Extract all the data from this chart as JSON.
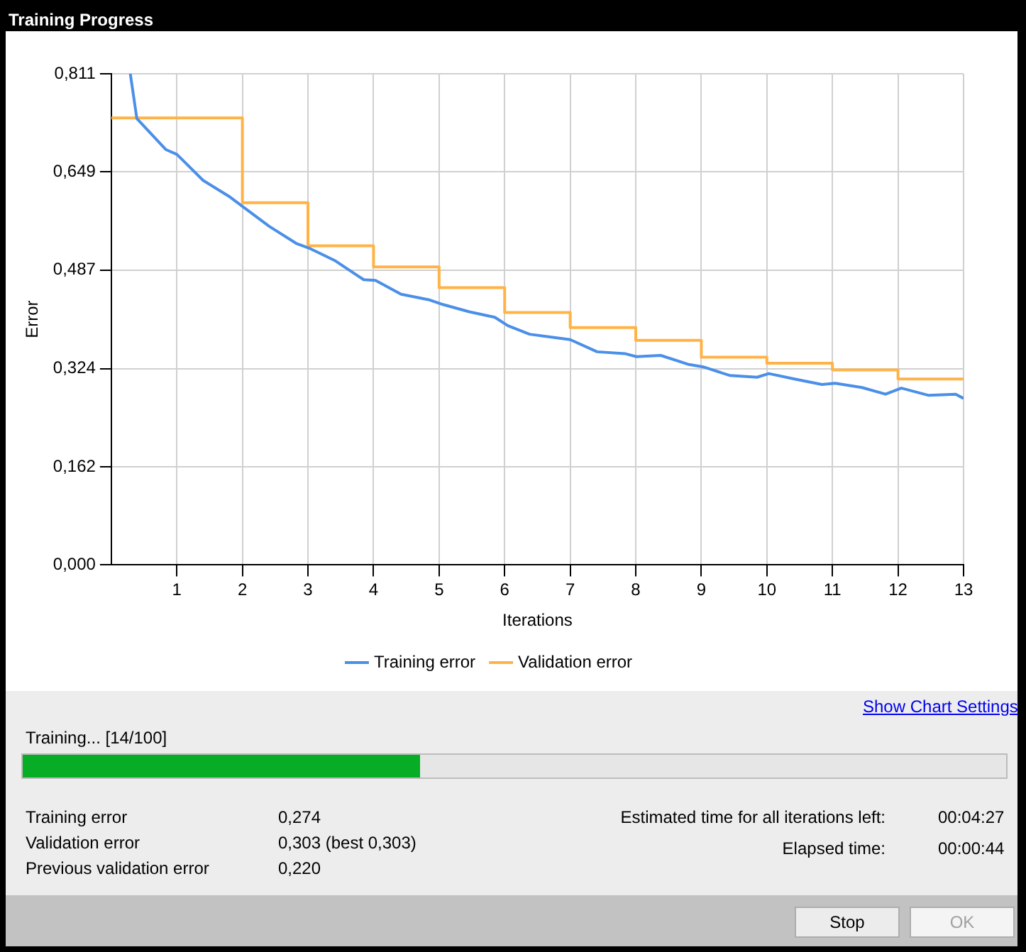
{
  "chart_data": {
    "type": "line",
    "title": "Training Progress",
    "xlabel": "Iterations",
    "ylabel": "Error",
    "xlim": [
      0,
      13
    ],
    "xticks": [
      1,
      2,
      3,
      4,
      5,
      6,
      7,
      8,
      9,
      10,
      11,
      12,
      13
    ],
    "ylim": [
      0,
      0.811
    ],
    "yticks": [
      {
        "value": 0,
        "label": "0,000"
      },
      {
        "value": 0.162,
        "label": "0,162"
      },
      {
        "value": 0.324,
        "label": "0,324"
      },
      {
        "value": 0.487,
        "label": "0,487"
      },
      {
        "value": 0.649,
        "label": "0,649"
      },
      {
        "value": 0.811,
        "label": "0,811"
      }
    ],
    "grid": true,
    "legend": "bottom",
    "marker": "none",
    "line_style": "solid",
    "series": [
      {
        "name": "Training error",
        "type": "line",
        "color": "#4a8fe8",
        "x": [
          0.29,
          0.39,
          0.83,
          1.0,
          1.4,
          1.79,
          2.0,
          2.41,
          2.82,
          3.04,
          3.42,
          3.85,
          4.03,
          4.42,
          4.84,
          5.06,
          5.46,
          5.85,
          6.05,
          6.38,
          7.0,
          7.41,
          7.83,
          8.01,
          8.38,
          8.81,
          9.03,
          9.43,
          9.85,
          10.03,
          10.42,
          10.84,
          11.04,
          11.45,
          11.81,
          12.05,
          12.47,
          12.88,
          13.0
        ],
        "values": [
          0.811,
          0.737,
          0.686,
          0.678,
          0.635,
          0.609,
          0.592,
          0.559,
          0.531,
          0.522,
          0.502,
          0.471,
          0.47,
          0.447,
          0.438,
          0.43,
          0.418,
          0.409,
          0.395,
          0.381,
          0.372,
          0.352,
          0.349,
          0.344,
          0.346,
          0.331,
          0.327,
          0.313,
          0.31,
          0.316,
          0.307,
          0.298,
          0.3,
          0.293,
          0.282,
          0.292,
          0.28,
          0.282,
          0.275
        ]
      },
      {
        "name": "Validation error",
        "type": "step",
        "color": "#ffb347",
        "x": [
          0,
          2,
          3,
          4,
          5,
          6,
          7,
          8,
          9,
          10,
          11,
          12,
          13
        ],
        "values": [
          0.738,
          0.598,
          0.527,
          0.492,
          0.458,
          0.417,
          0.392,
          0.371,
          0.343,
          0.333,
          0.322,
          0.307,
          0.307
        ]
      }
    ],
    "annotations": [
      "Show Chart Settings",
      "Training... [14/100]",
      "Training error",
      "0,274",
      "Validation error",
      "0,303 (best 0,303)",
      "Previous validation error",
      "0,220",
      "Estimated time for all iterations left:",
      "00:04:27",
      "Elapsed time:",
      "00:00:44",
      "Stop",
      "OK"
    ]
  }
}
